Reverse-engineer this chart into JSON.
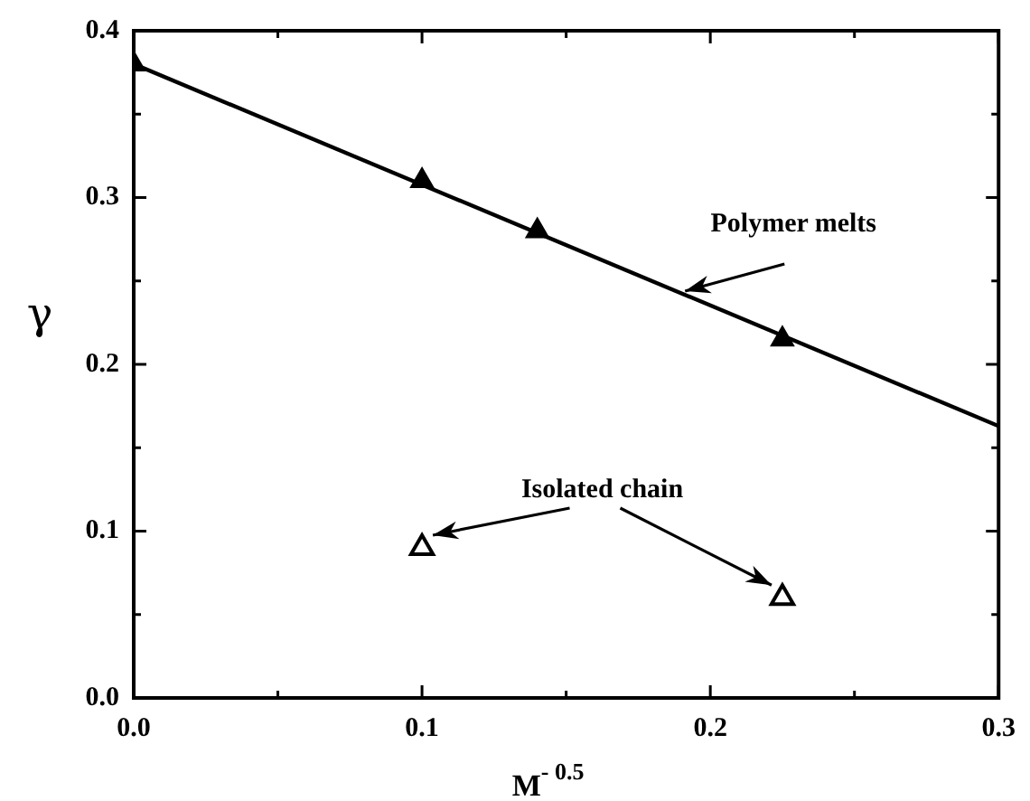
{
  "chart_data": {
    "type": "scatter",
    "xlabel": "M$^{- 0.5}$",
    "ylabel": "γ",
    "series": [
      {
        "color": "#000000",
        "x": [
          0,
          0.1,
          0.14,
          0.225
        ],
        "values": [
          0.38,
          0.31,
          0.28,
          0.215
        ],
        "marker": "triangle"
      },
      {
        "color": "#000000",
        "x": [
          0.1,
          0.225
        ],
        "values": [
          0.09,
          0.06
        ],
        "marker": "triangle"
      },
      {
        "type": "line",
        "color": "#000000",
        "x": [
          0,
          0.3
        ],
        "values": [
          0.38,
          0.163
        ],
        "marker": "none",
        "line_style": "solid"
      }
    ],
    "xlim": [
      0,
      0.3
    ],
    "ylim": [
      0,
      0.4
    ],
    "xticks": [
      {
        "value": 0,
        "label": "0.0"
      },
      {
        "value": 0.05,
        "label": null
      },
      {
        "value": 0.1,
        "label": "0.1"
      },
      {
        "value": 0.15,
        "label": null
      },
      {
        "value": 0.2,
        "label": "0.2"
      },
      {
        "value": 0.25,
        "label": null
      },
      {
        "value": 0.3,
        "label": "0.3"
      }
    ],
    "yticks": [
      {
        "value": 0,
        "label": "0.0"
      },
      {
        "value": 0.05,
        "label": null
      },
      {
        "value": 0.1,
        "label": "0.1"
      },
      {
        "value": 0.15,
        "label": null
      },
      {
        "value": 0.2,
        "label": "0.2"
      },
      {
        "value": 0.25,
        "label": null
      },
      {
        "value": 0.3,
        "label": "0.3"
      },
      {
        "value": 0.35,
        "label": null
      },
      {
        "value": 0.4,
        "label": "0.4"
      }
    ],
    "annotations": [
      {
        "text": "Polymer melts",
        "x": 0.19,
        "y": 0.245
      },
      "Isolated chain"
    ],
    "grid": false,
    "legend": false
  }
}
